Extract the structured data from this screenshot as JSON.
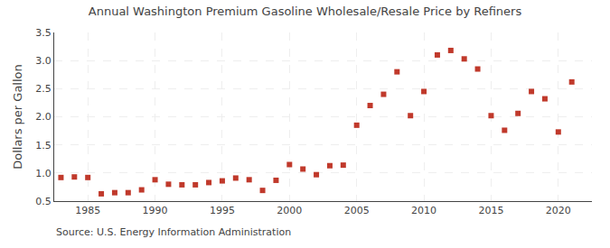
{
  "chart_data": {
    "type": "scatter",
    "title": "Annual Washington Premium Gasoline Wholesale/Resale Price by Refiners",
    "ylabel": "Dollars per Gallon",
    "annotations": [
      "Source: U.S. Energy Information Administration"
    ],
    "x": [
      1983,
      1984,
      1985,
      1986,
      1987,
      1988,
      1989,
      1990,
      1991,
      1992,
      1993,
      1994,
      1995,
      1996,
      1997,
      1998,
      1999,
      2000,
      2001,
      2002,
      2003,
      2004,
      2005,
      2006,
      2007,
      2008,
      2009,
      2010,
      2011,
      2012,
      2013,
      2014,
      2015,
      2016,
      2017,
      2018,
      2019,
      2020,
      2021
    ],
    "values": [
      0.92,
      0.93,
      0.92,
      0.63,
      0.65,
      0.65,
      0.7,
      0.88,
      0.8,
      0.79,
      0.79,
      0.83,
      0.86,
      0.91,
      0.88,
      0.69,
      0.87,
      1.15,
      1.07,
      0.97,
      1.13,
      1.14,
      1.85,
      2.2,
      2.4,
      2.8,
      2.02,
      2.45,
      3.1,
      3.18,
      3.03,
      2.85,
      2.02,
      1.76,
      2.06,
      2.45,
      2.32,
      1.73,
      2.62
    ],
    "color": "#c0392b",
    "marker": "square",
    "xlim": [
      1982.5,
      2022.5
    ],
    "xticks": [
      1985,
      1990,
      1995,
      2000,
      2005,
      2010,
      2015,
      2020
    ],
    "ylim": [
      0.5,
      3.5
    ],
    "yticks": [
      0.5,
      {
        "value": 1.0,
        "label": "1.0"
      },
      1.5,
      {
        "value": 2.0,
        "label": "2.0"
      },
      2.5,
      {
        "value": 3.0,
        "label": "3.0"
      },
      3.5
    ],
    "grid": true
  }
}
